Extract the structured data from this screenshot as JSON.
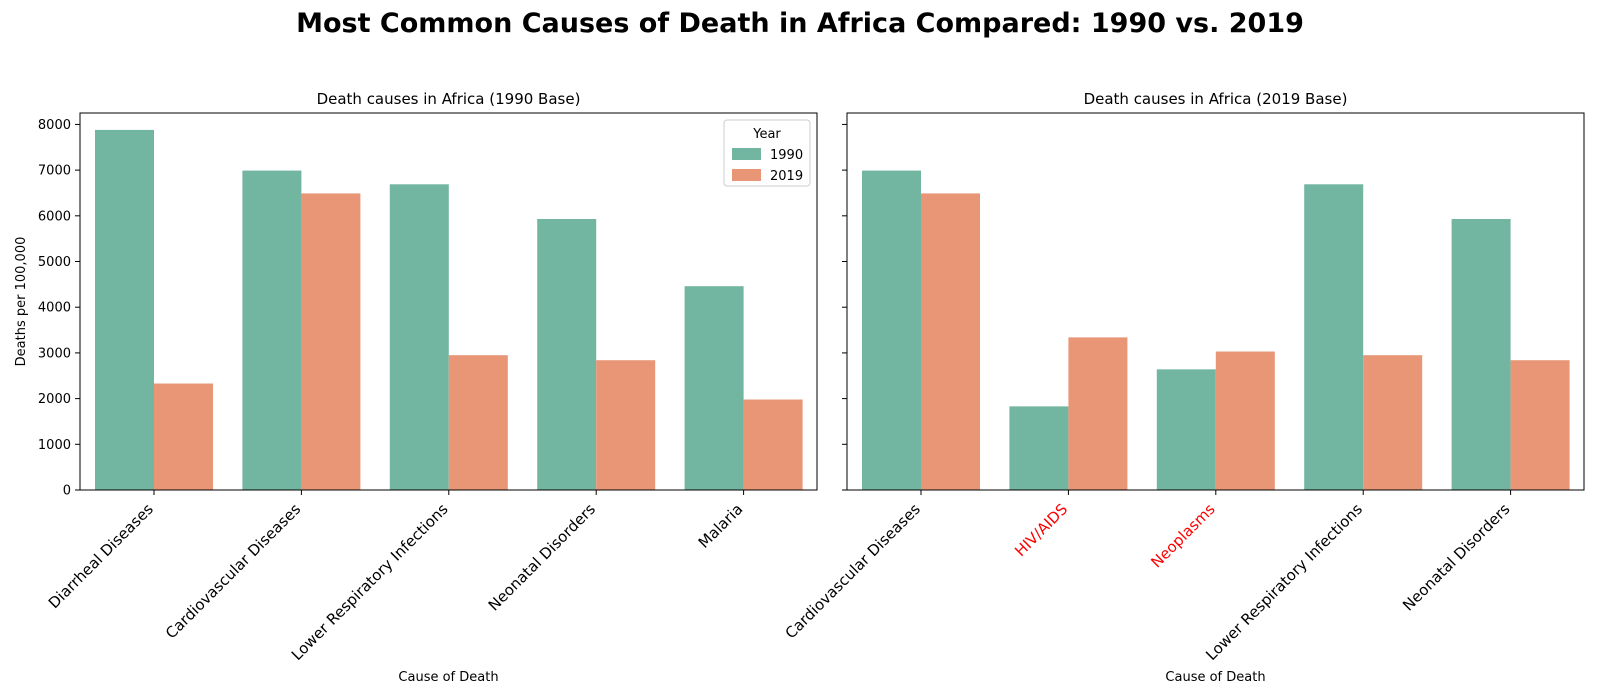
{
  "figure": {
    "title": "Most Common Causes of Death in Africa Compared: 1990 vs. 2019"
  },
  "colors": {
    "1990": "#72b5a1",
    "2019": "#e89675",
    "highlight_label": "#ff0000"
  },
  "chart_data": [
    {
      "type": "bar",
      "title": "Death causes in Africa (1990 Base)",
      "xlabel": "Cause of Death",
      "ylabel": "Deaths per 100,000",
      "ylim": [
        0,
        8250
      ],
      "yticks": [
        0,
        1000,
        2000,
        3000,
        4000,
        5000,
        6000,
        7000,
        8000
      ],
      "categories": [
        "Diarrheal Diseases",
        "Cardiovascular Diseases",
        "Lower Respiratory Infections",
        "Neonatal Disorders",
        "Malaria"
      ],
      "highlight_categories": [],
      "legend": {
        "title": "Year",
        "position": "top-right"
      },
      "series": [
        {
          "name": "1990",
          "values": [
            7880,
            6990,
            6690,
            5930,
            4460
          ]
        },
        {
          "name": "2019",
          "values": [
            2330,
            6490,
            2950,
            2840,
            1980
          ]
        }
      ]
    },
    {
      "type": "bar",
      "title": "Death causes in Africa (2019 Base)",
      "xlabel": "Cause of Death",
      "ylabel": "",
      "ylim": [
        0,
        8250
      ],
      "yticks": [
        0,
        1000,
        2000,
        3000,
        4000,
        5000,
        6000,
        7000,
        8000
      ],
      "categories": [
        "Cardiovascular Diseases",
        "HIV/AIDS",
        "Neoplasms",
        "Lower Respiratory Infections",
        "Neonatal Disorders"
      ],
      "highlight_categories": [
        "HIV/AIDS",
        "Neoplasms"
      ],
      "series": [
        {
          "name": "1990",
          "values": [
            6990,
            1830,
            2640,
            6690,
            5930
          ]
        },
        {
          "name": "2019",
          "values": [
            6490,
            3340,
            3030,
            2950,
            2840
          ]
        }
      ]
    }
  ]
}
